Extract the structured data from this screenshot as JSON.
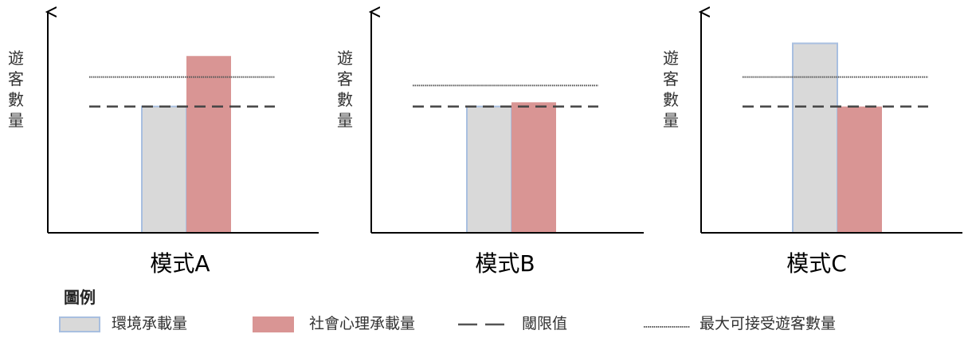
{
  "chart_data": [
    {
      "type": "bar",
      "title": "",
      "xlabel": "模式A",
      "ylabel": "遊客數量",
      "ylim": [
        0,
        10
      ],
      "categories": [
        "環境承載量",
        "社會心理承載量"
      ],
      "values": [
        6.0,
        8.4
      ],
      "reference_lines": {
        "threshold": 6.0,
        "max_visitors": 7.4
      }
    },
    {
      "type": "bar",
      "title": "",
      "xlabel": "模式B",
      "ylabel": "遊客數量",
      "ylim": [
        0,
        10
      ],
      "categories": [
        "環境承載量",
        "社會心理承載量"
      ],
      "values": [
        6.0,
        6.2
      ],
      "reference_lines": {
        "threshold": 6.0,
        "max_visitors": 7.0
      }
    },
    {
      "type": "bar",
      "title": "",
      "xlabel": "模式C",
      "ylabel": "遊客數量",
      "ylim": [
        0,
        10
      ],
      "categories": [
        "環境承載量",
        "社會心理承載量"
      ],
      "values": [
        9.0,
        6.0
      ],
      "reference_lines": {
        "threshold": 6.0,
        "max_visitors": 7.4
      }
    }
  ],
  "legend": {
    "title": "圖例",
    "items": [
      {
        "label": "環境承載量",
        "marker": "box",
        "color": "#d9d9d9",
        "stroke": "#a8bfe0"
      },
      {
        "label": "社會心理承載量",
        "marker": "box",
        "color": "#d99594",
        "stroke": "#d99594"
      },
      {
        "label": "閾限值",
        "marker": "dash",
        "color": "#555555"
      },
      {
        "label": "最大可接受遊客數量",
        "marker": "dot",
        "color": "#555555"
      }
    ]
  },
  "colors": {
    "environment": "#d9d9d9",
    "environment_stroke": "#a8bfe0",
    "social": "#d99594",
    "axis": "#000000",
    "threshold_line": "#444444",
    "max_line": "#555555"
  }
}
